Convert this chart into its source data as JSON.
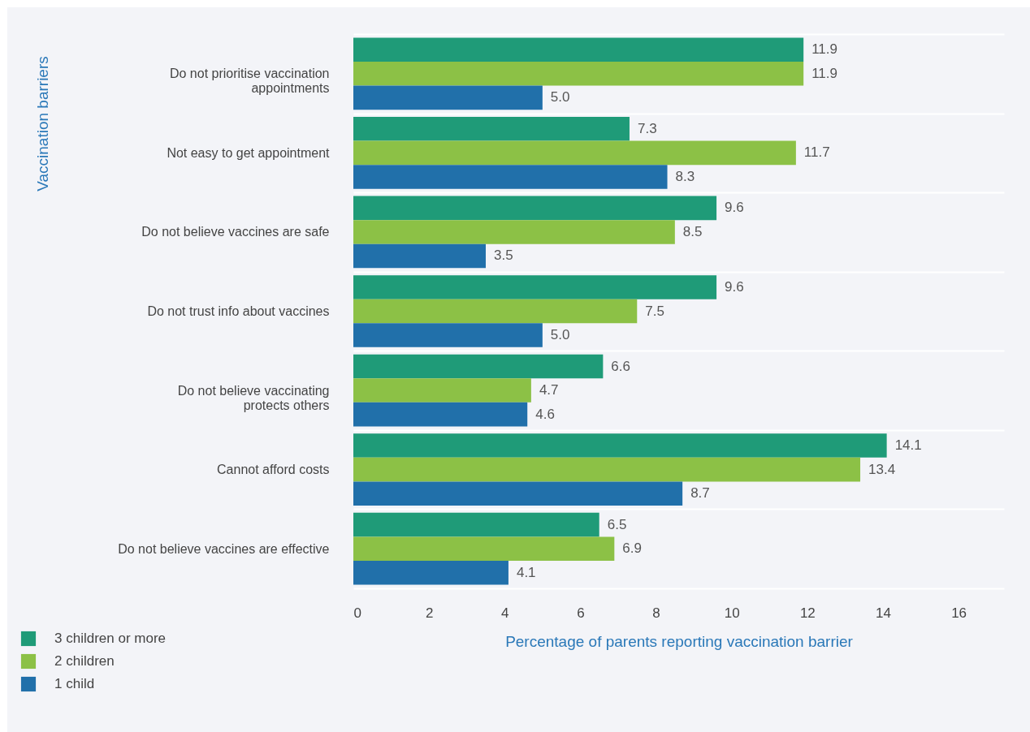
{
  "chart_data": {
    "type": "bar",
    "orientation": "horizontal",
    "categories": [
      "Do not prioritise vaccination\nappointments",
      "Not easy to get appointment",
      "Do not believe vaccines are safe",
      "Do not trust info about vaccines",
      "Do not believe vaccinating\nprotects others",
      "Cannot afford costs",
      "Do not believe vaccines are effective"
    ],
    "series": [
      {
        "name": "3 children or more",
        "color": "#1f9b78",
        "values": [
          11.9,
          7.3,
          9.6,
          9.6,
          6.6,
          14.1,
          6.5
        ],
        "value_labels": [
          "11.9",
          "7.3",
          "9.6",
          "9.6",
          "6.6",
          "14.1",
          "6.5"
        ]
      },
      {
        "name": "2 children",
        "color": "#8cc146",
        "values": [
          11.9,
          11.7,
          8.5,
          7.5,
          4.7,
          13.4,
          6.9
        ],
        "value_labels": [
          "11.9",
          "11.7",
          "8.5",
          "7.5",
          "4.7",
          "13.4",
          "6.9"
        ]
      },
      {
        "name": "1 child",
        "color": "#2170aa",
        "values": [
          5,
          8.3,
          3.5,
          5,
          4.6,
          8.7,
          4.1
        ],
        "value_labels": [
          "5.0",
          "8.3",
          "3.5",
          "5.0",
          "4.6",
          "8.7",
          "4.1"
        ]
      }
    ],
    "xlabel": "Percentage of parents reporting vaccination barrier",
    "ylabel": "Vaccination barriers",
    "xlim": [
      0,
      17.2
    ],
    "xticks": [
      0,
      2,
      4,
      6,
      8,
      10,
      12,
      14,
      16
    ],
    "grid": "y",
    "legend": "bottom left"
  }
}
